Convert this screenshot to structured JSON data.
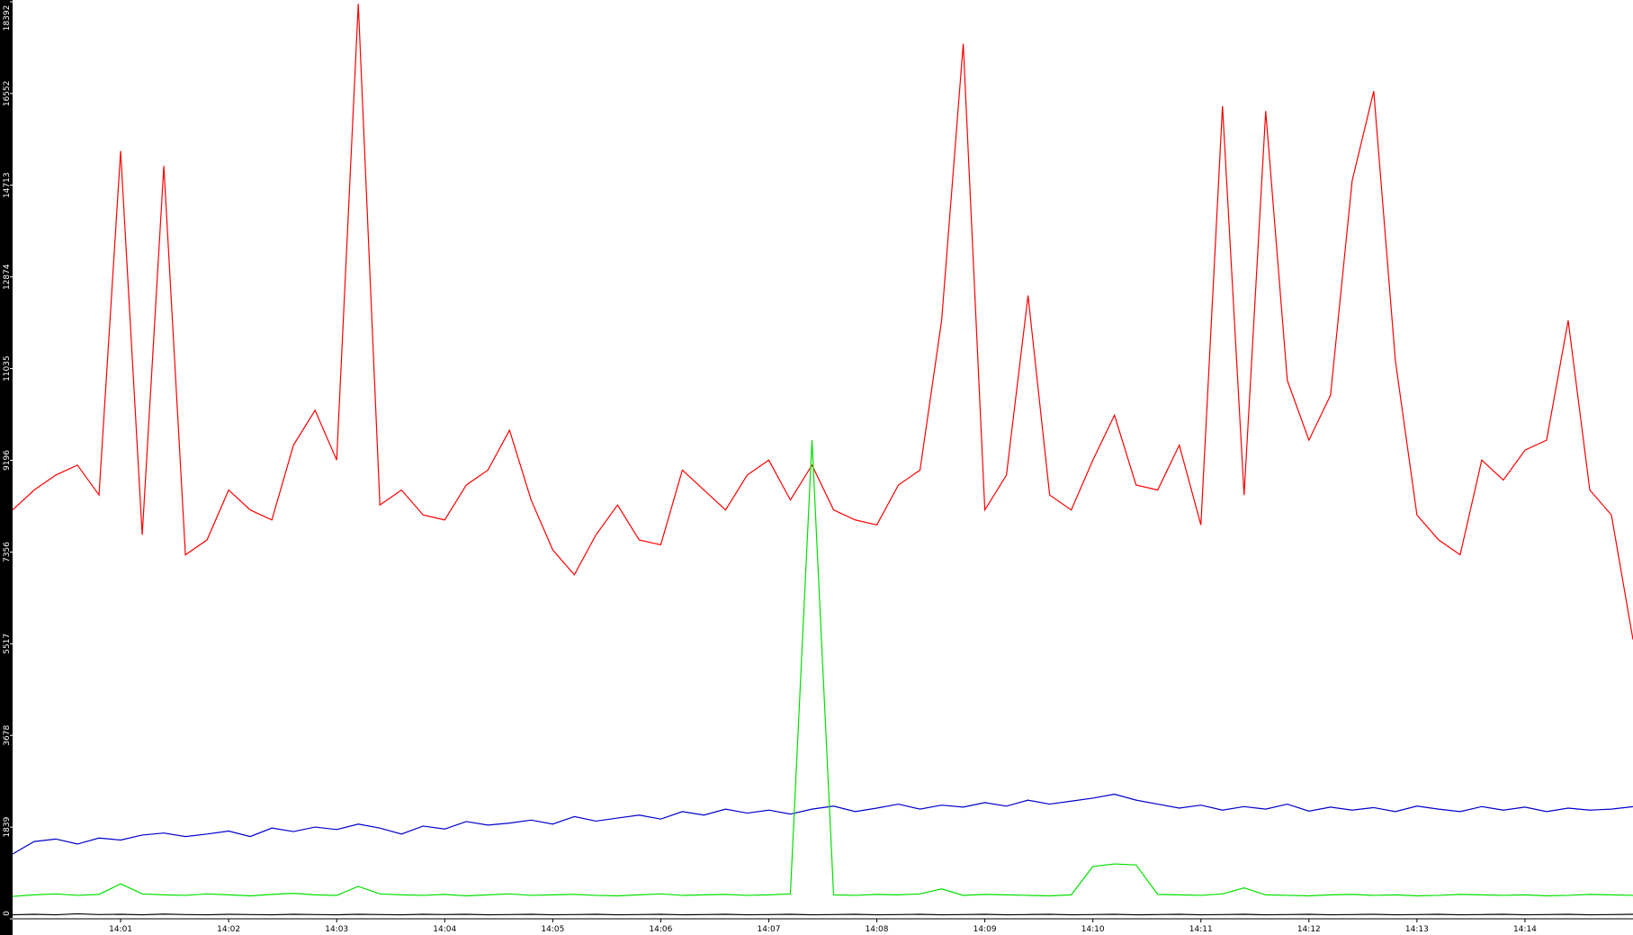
{
  "chart_data": {
    "type": "line",
    "xlim": [
      0,
      15
    ],
    "xticks": [
      {
        "value": 1,
        "label": "14:01"
      },
      {
        "value": 2,
        "label": "14:02"
      },
      {
        "value": 3,
        "label": "14:03"
      },
      {
        "value": 4,
        "label": "14:04"
      },
      {
        "value": 5,
        "label": "14:05"
      },
      {
        "value": 6,
        "label": "14:06"
      },
      {
        "value": 7,
        "label": "14:07"
      },
      {
        "value": 8,
        "label": "14:08"
      },
      {
        "value": 9,
        "label": "14:09"
      },
      {
        "value": 10,
        "label": "14:10"
      },
      {
        "value": 11,
        "label": "14:11"
      },
      {
        "value": 12,
        "label": "14:12"
      },
      {
        "value": 13,
        "label": "14:13"
      },
      {
        "value": 14,
        "label": "14:14"
      }
    ],
    "ylim": [
      0,
      18392
    ],
    "yticks": [
      0,
      1839,
      3678,
      5517,
      7356,
      9196,
      11035,
      12874,
      14713,
      16552,
      18392
    ],
    "x": [
      0,
      0.2,
      0.4,
      0.6,
      0.8,
      1,
      1.2,
      1.4,
      1.6,
      1.8,
      2,
      2.2,
      2.4,
      2.6,
      2.8,
      3,
      3.2,
      3.4,
      3.6,
      3.8,
      4,
      4.2,
      4.4,
      4.6,
      4.8,
      5,
      5.2,
      5.4,
      5.6,
      5.8,
      6,
      6.2,
      6.4,
      6.6,
      6.8,
      7,
      7.2,
      7.4,
      7.6,
      7.8,
      8,
      8.2,
      8.4,
      8.6,
      8.8,
      9,
      9.2,
      9.4,
      9.6,
      9.8,
      10,
      10.2,
      10.4,
      10.6,
      10.8,
      11,
      11.2,
      11.4,
      11.6,
      11.8,
      12,
      12.2,
      12.4,
      12.6,
      12.8,
      13,
      13.2,
      13.4,
      13.6,
      13.8,
      14,
      14.2,
      14.4,
      14.6,
      14.8,
      15
    ],
    "series": [
      {
        "color": "#ff0000",
        "values": [
          8200,
          8600,
          8900,
          9100,
          8500,
          15400,
          7700,
          15100,
          7300,
          7600,
          8600,
          8200,
          8000,
          9500,
          10200,
          9200,
          18350,
          8300,
          8600,
          8100,
          8000,
          8700,
          9000,
          9800,
          8400,
          7400,
          6900,
          7700,
          8300,
          7600,
          7500,
          9000,
          8600,
          8200,
          8900,
          9200,
          8400,
          9100,
          8200,
          8000,
          7900,
          8700,
          9000,
          12000,
          17550,
          8200,
          8900,
          12500,
          8500,
          8200,
          9200,
          10100,
          8700,
          8600,
          9500,
          7900,
          16300,
          8500,
          16200,
          10800,
          9600,
          10500,
          14800,
          16600,
          11200,
          8100,
          7600,
          7300,
          9200,
          8800,
          9400,
          9600,
          12000,
          8600,
          8100,
          5600
        ]
      },
      {
        "color": "#0000cc",
        "values": [
          1300,
          1550,
          1600,
          1500,
          1620,
          1580,
          1680,
          1720,
          1650,
          1700,
          1760,
          1650,
          1820,
          1750,
          1840,
          1790,
          1900,
          1820,
          1700,
          1860,
          1800,
          1950,
          1880,
          1920,
          1980,
          1900,
          2050,
          1960,
          2020,
          2080,
          2000,
          2150,
          2080,
          2200,
          2120,
          2180,
          2100,
          2200,
          2260,
          2150,
          2220,
          2300,
          2200,
          2280,
          2240,
          2330,
          2260,
          2380,
          2300,
          2360,
          2420,
          2500,
          2380,
          2300,
          2220,
          2280,
          2180,
          2250,
          2200,
          2300,
          2160,
          2240,
          2180,
          2230,
          2150,
          2260,
          2200,
          2150,
          2250,
          2180,
          2240,
          2150,
          2220,
          2180,
          2200,
          2250
        ]
      },
      {
        "color": "#00e000",
        "values": [
          450,
          480,
          500,
          470,
          490,
          700,
          500,
          480,
          470,
          500,
          480,
          460,
          490,
          510,
          480,
          470,
          650,
          500,
          480,
          470,
          490,
          460,
          480,
          500,
          470,
          480,
          490,
          470,
          460,
          480,
          500,
          470,
          480,
          490,
          470,
          480,
          500,
          9600,
          480,
          470,
          490,
          480,
          500,
          600,
          470,
          490,
          480,
          470,
          460,
          480,
          1050,
          1100,
          1080,
          490,
          480,
          470,
          500,
          620,
          480,
          470,
          460,
          480,
          490,
          470,
          480,
          460,
          470,
          490,
          480,
          470,
          480,
          460,
          470,
          490,
          480,
          470
        ]
      },
      {
        "color": "#000000",
        "values": [
          80,
          90,
          80,
          100,
          85,
          90,
          80,
          95,
          85,
          80,
          90,
          85,
          80,
          90,
          85,
          80,
          90,
          85,
          80,
          90,
          85,
          90,
          80,
          85,
          90,
          80,
          85,
          90,
          80,
          85,
          90,
          80,
          85,
          90,
          80,
          85,
          90,
          80,
          85,
          90,
          80,
          85,
          90,
          80,
          85,
          90,
          80,
          85,
          90,
          80,
          85,
          90,
          80,
          85,
          90,
          80,
          85,
          90,
          80,
          85,
          90,
          80,
          85,
          90,
          80,
          85,
          90,
          80,
          85,
          90,
          80,
          85,
          90,
          80,
          85,
          90
        ]
      }
    ]
  }
}
